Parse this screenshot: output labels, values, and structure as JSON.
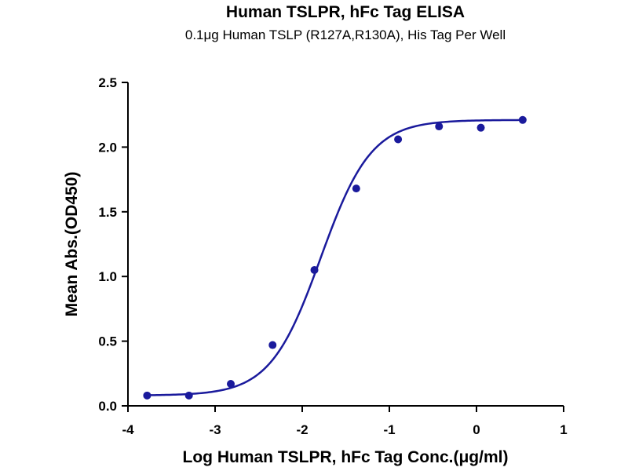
{
  "chart_data": {
    "type": "scatter",
    "title": "Human TSLPR, hFc Tag ELISA",
    "subtitle": "0.1μg Human TSLP (R127A,R130A), His Tag Per Well",
    "xlabel": "Log Human TSLPR, hFc Tag Conc.(μg/ml)",
    "ylabel": "Mean Abs.(OD450)",
    "xlim": [
      -4,
      1
    ],
    "ylim": [
      0.0,
      2.5
    ],
    "x_ticks": [
      "-4",
      "-3",
      "-2",
      "-1",
      "0",
      "1"
    ],
    "y_ticks": [
      "0.0",
      "0.5",
      "1.0",
      "1.5",
      "2.0",
      "2.5"
    ],
    "grid": false,
    "color": "#1a1a9c",
    "series": [
      {
        "x": [
          -3.78,
          -3.3,
          -2.82,
          -2.34,
          -1.86,
          -1.38,
          -0.9,
          -0.43,
          0.05,
          0.53
        ],
        "y": [
          0.08,
          0.08,
          0.17,
          0.47,
          1.05,
          1.68,
          2.06,
          2.16,
          2.15,
          2.21
        ],
        "fit": "four-parameter logistic"
      }
    ]
  }
}
